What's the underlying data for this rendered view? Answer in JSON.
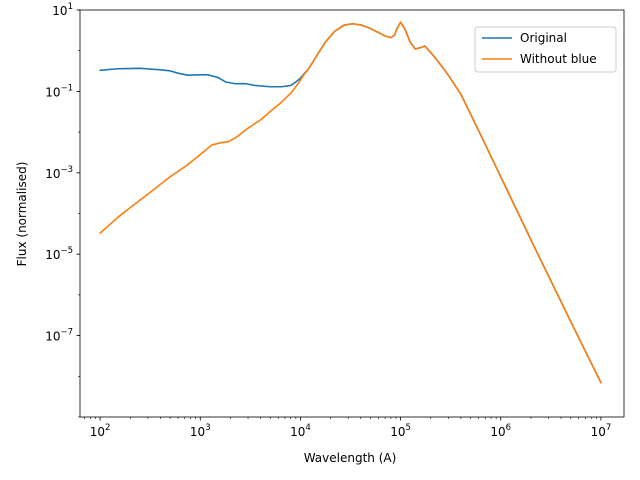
{
  "chart_data": {
    "type": "line",
    "xscale": "log",
    "yscale": "log",
    "xlabel": "Wavelength (A)",
    "ylabel": "Flux (normalised)",
    "xlim": [
      63,
      17000000
    ],
    "ylim": [
      1e-09,
      10
    ],
    "x_ticks": [
      {
        "value": 100,
        "base": "10",
        "exp": "2"
      },
      {
        "value": 1000,
        "base": "10",
        "exp": "3"
      },
      {
        "value": 10000,
        "base": "10",
        "exp": "4"
      },
      {
        "value": 100000,
        "base": "10",
        "exp": "5"
      },
      {
        "value": 1000000,
        "base": "10",
        "exp": "6"
      },
      {
        "value": 10000000,
        "base": "10",
        "exp": "7"
      }
    ],
    "y_ticks": [
      {
        "value": 10,
        "base": "10",
        "exp": "1"
      },
      {
        "value": 0.1,
        "base": "10",
        "exp": "−1"
      },
      {
        "value": 0.001,
        "base": "10",
        "exp": "−3"
      },
      {
        "value": 1e-05,
        "base": "10",
        "exp": "−5"
      },
      {
        "value": 1e-07,
        "base": "10",
        "exp": "−7"
      }
    ],
    "grid": false,
    "legend_position": "top-right",
    "series": [
      {
        "name": "Original",
        "color": "#1f77b4",
        "points": [
          [
            100,
            0.33
          ],
          [
            150,
            0.36
          ],
          [
            250,
            0.37
          ],
          [
            400,
            0.34
          ],
          [
            500,
            0.32
          ],
          [
            600,
            0.28
          ],
          [
            750,
            0.25
          ],
          [
            1000,
            0.255
          ],
          [
            1200,
            0.255
          ],
          [
            1500,
            0.22
          ],
          [
            1800,
            0.17
          ],
          [
            2200,
            0.155
          ],
          [
            2800,
            0.155
          ],
          [
            3500,
            0.14
          ],
          [
            5000,
            0.13
          ],
          [
            6500,
            0.13
          ],
          [
            8000,
            0.14
          ],
          [
            9000,
            0.17
          ],
          [
            10000,
            0.21
          ],
          [
            11000,
            0.28
          ],
          [
            12000,
            0.35
          ],
          [
            15000,
            0.85
          ],
          [
            18000,
            1.7
          ],
          [
            22000,
            3.0
          ],
          [
            27000,
            4.2
          ],
          [
            33000,
            4.6
          ],
          [
            40000,
            4.3
          ],
          [
            50000,
            3.5
          ],
          [
            60000,
            2.8
          ],
          [
            70000,
            2.3
          ],
          [
            80000,
            2.1
          ],
          [
            87000,
            2.4
          ],
          [
            92000,
            3.5
          ],
          [
            100000,
            5.0
          ],
          [
            110000,
            3.5
          ],
          [
            125000,
            1.6
          ],
          [
            140000,
            1.1
          ],
          [
            160000,
            1.2
          ],
          [
            175000,
            1.3
          ],
          [
            200000,
            0.9
          ],
          [
            230000,
            0.6
          ],
          [
            300000,
            0.25
          ],
          [
            400000,
            0.085
          ],
          [
            600000,
            0.011
          ],
          [
            1000000,
            0.0008
          ],
          [
            2000000,
            2.25e-05
          ],
          [
            5000000,
            2.2e-07
          ],
          [
            10000000,
            7e-09
          ]
        ]
      },
      {
        "name": "Without blue",
        "color": "#ff7f0e",
        "points": [
          [
            100,
            3.3e-05
          ],
          [
            150,
            8e-05
          ],
          [
            200,
            0.00014
          ],
          [
            300,
            0.0003
          ],
          [
            500,
            0.0008
          ],
          [
            700,
            0.0014
          ],
          [
            1000,
            0.0028
          ],
          [
            1300,
            0.0048
          ],
          [
            1600,
            0.0055
          ],
          [
            1900,
            0.0058
          ],
          [
            2300,
            0.0075
          ],
          [
            3000,
            0.0125
          ],
          [
            4000,
            0.02
          ],
          [
            5000,
            0.032
          ],
          [
            6500,
            0.055
          ],
          [
            8000,
            0.09
          ],
          [
            9000,
            0.13
          ],
          [
            10000,
            0.19
          ],
          [
            11000,
            0.27
          ],
          [
            12000,
            0.35
          ],
          [
            15000,
            0.85
          ],
          [
            18000,
            1.7
          ],
          [
            22000,
            3.0
          ],
          [
            27000,
            4.2
          ],
          [
            33000,
            4.6
          ],
          [
            40000,
            4.3
          ],
          [
            50000,
            3.5
          ],
          [
            60000,
            2.8
          ],
          [
            70000,
            2.3
          ],
          [
            80000,
            2.1
          ],
          [
            87000,
            2.4
          ],
          [
            92000,
            3.5
          ],
          [
            100000,
            5.0
          ],
          [
            110000,
            3.5
          ],
          [
            125000,
            1.6
          ],
          [
            140000,
            1.1
          ],
          [
            160000,
            1.2
          ],
          [
            175000,
            1.3
          ],
          [
            200000,
            0.9
          ],
          [
            230000,
            0.6
          ],
          [
            300000,
            0.25
          ],
          [
            400000,
            0.085
          ],
          [
            600000,
            0.011
          ],
          [
            1000000,
            0.0008
          ],
          [
            2000000,
            2.25e-05
          ],
          [
            5000000,
            2.2e-07
          ],
          [
            10000000,
            7e-09
          ]
        ]
      }
    ]
  }
}
